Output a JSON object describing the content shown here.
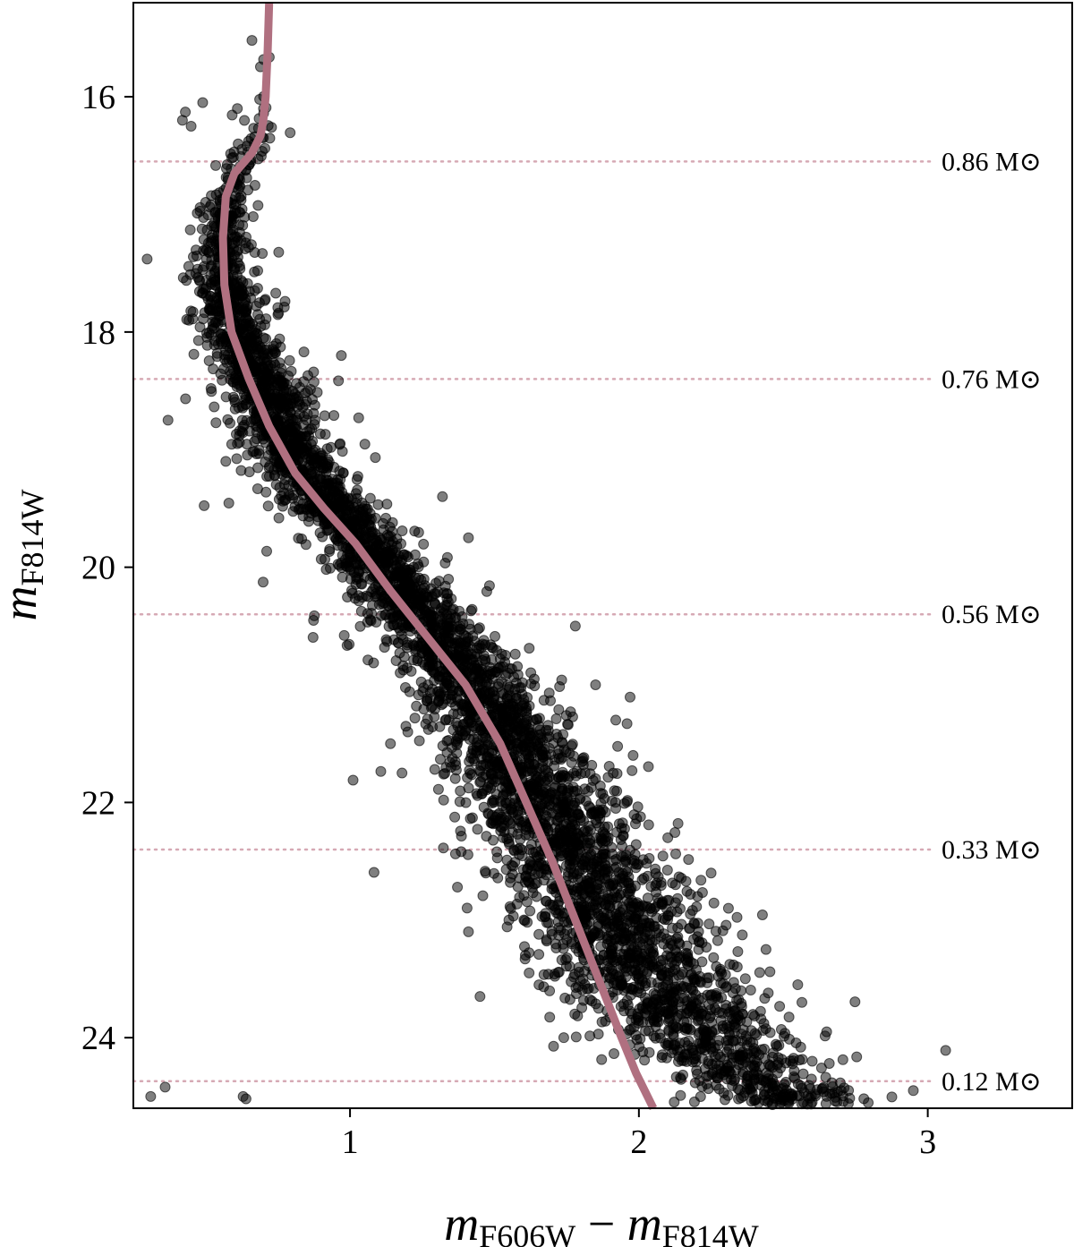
{
  "chart_data": {
    "type": "scatter",
    "xlabel": {
      "base": "m",
      "sub1": "F606W",
      "minus": "−",
      "base2": "m",
      "sub2": "F814W"
    },
    "ylabel": {
      "base": "m",
      "sub": "F814W"
    },
    "xlim": [
      0.25,
      3.5
    ],
    "ylim": [
      24.6,
      15.2
    ],
    "y_inverted": true,
    "xticks": [
      1,
      2,
      3
    ],
    "yticks": [
      16,
      18,
      20,
      22,
      24
    ],
    "grid": false,
    "colors": {
      "points": "#000000",
      "isochrone": "#b07080",
      "mass_lines": "#d6a9b4"
    },
    "isochrone": {
      "color": "#b07080",
      "x": [
        0.72,
        0.715,
        0.708,
        0.7,
        0.69,
        0.66,
        0.6,
        0.57,
        0.56,
        0.565,
        0.59,
        0.65,
        0.72,
        0.81,
        0.91,
        1.02,
        1.14,
        1.27,
        1.4,
        1.52,
        1.61,
        1.7,
        1.78,
        1.86,
        1.94,
        1.99,
        2.02,
        2.05
      ],
      "y": [
        15.2,
        15.6,
        16.0,
        16.2,
        16.33,
        16.48,
        16.65,
        16.85,
        17.2,
        17.6,
        18.0,
        18.4,
        18.8,
        19.2,
        19.5,
        19.8,
        20.2,
        20.6,
        21.0,
        21.5,
        22.0,
        22.5,
        23.0,
        23.5,
        24.0,
        24.3,
        24.45,
        24.6
      ]
    },
    "mass_lines": [
      {
        "y": 16.55,
        "label": "0.86 M⊙"
      },
      {
        "y": 18.4,
        "label": "0.76 M⊙"
      },
      {
        "y": 20.4,
        "label": "0.56 M⊙"
      },
      {
        "y": 22.4,
        "label": "0.33 M⊙"
      },
      {
        "y": 24.37,
        "label": "0.12 M⊙"
      }
    ],
    "stars_density_profile": [
      {
        "y": 15.5,
        "dx": 0.0,
        "w": 0.02,
        "n": 3
      },
      {
        "y": 16.0,
        "dx": 0.0,
        "w": 0.03,
        "n": 6
      },
      {
        "y": 16.4,
        "dx": 0.0,
        "w": 0.05,
        "n": 30
      },
      {
        "y": 16.8,
        "dx": 0.0,
        "w": 0.03,
        "n": 60
      },
      {
        "y": 17.2,
        "dx": 0.0,
        "w": 0.04,
        "n": 110
      },
      {
        "y": 17.6,
        "dx": 0.0,
        "w": 0.05,
        "n": 160
      },
      {
        "y": 18.0,
        "dx": 0.02,
        "w": 0.06,
        "n": 200
      },
      {
        "y": 18.4,
        "dx": 0.03,
        "w": 0.07,
        "n": 230
      },
      {
        "y": 18.8,
        "dx": 0.03,
        "w": 0.07,
        "n": 250
      },
      {
        "y": 19.2,
        "dx": 0.03,
        "w": 0.07,
        "n": 260
      },
      {
        "y": 19.6,
        "dx": 0.03,
        "w": 0.07,
        "n": 260
      },
      {
        "y": 20.0,
        "dx": 0.03,
        "w": 0.07,
        "n": 260
      },
      {
        "y": 20.4,
        "dx": 0.03,
        "w": 0.08,
        "n": 260
      },
      {
        "y": 20.8,
        "dx": 0.03,
        "w": 0.09,
        "n": 270
      },
      {
        "y": 21.2,
        "dx": 0.03,
        "w": 0.1,
        "n": 280
      },
      {
        "y": 21.6,
        "dx": 0.04,
        "w": 0.11,
        "n": 290
      },
      {
        "y": 22.0,
        "dx": 0.05,
        "w": 0.12,
        "n": 300
      },
      {
        "y": 22.4,
        "dx": 0.07,
        "w": 0.13,
        "n": 300
      },
      {
        "y": 22.8,
        "dx": 0.1,
        "w": 0.14,
        "n": 300
      },
      {
        "y": 23.2,
        "dx": 0.14,
        "w": 0.15,
        "n": 300
      },
      {
        "y": 23.6,
        "dx": 0.2,
        "w": 0.15,
        "n": 280
      },
      {
        "y": 24.0,
        "dx": 0.28,
        "w": 0.15,
        "n": 250
      },
      {
        "y": 24.4,
        "dx": 0.4,
        "w": 0.14,
        "n": 200
      },
      {
        "y": 24.6,
        "dx": 0.55,
        "w": 0.12,
        "n": 80
      }
    ],
    "outlier_stars": [
      {
        "x": 0.42,
        "y": 16.2
      },
      {
        "x": 0.45,
        "y": 16.25
      },
      {
        "x": 0.43,
        "y": 16.13
      },
      {
        "x": 0.49,
        "y": 16.05
      },
      {
        "x": 0.61,
        "y": 16.1
      },
      {
        "x": 0.37,
        "y": 18.75
      },
      {
        "x": 0.97,
        "y": 18.2
      },
      {
        "x": 1.03,
        "y": 18.73
      },
      {
        "x": 0.57,
        "y": 19.1
      },
      {
        "x": 0.61,
        "y": 18.95
      },
      {
        "x": 0.91,
        "y": 19.55
      },
      {
        "x": 0.98,
        "y": 20.58
      },
      {
        "x": 1.32,
        "y": 19.4
      },
      {
        "x": 1.41,
        "y": 19.75
      },
      {
        "x": 1.22,
        "y": 20.0
      },
      {
        "x": 1.27,
        "y": 21.0
      },
      {
        "x": 1.14,
        "y": 21.5
      },
      {
        "x": 1.2,
        "y": 21.4
      },
      {
        "x": 1.18,
        "y": 21.75
      },
      {
        "x": 1.35,
        "y": 21.7
      },
      {
        "x": 1.48,
        "y": 22.1
      },
      {
        "x": 1.53,
        "y": 22.3
      },
      {
        "x": 1.47,
        "y": 22.6
      },
      {
        "x": 1.58,
        "y": 22.4
      },
      {
        "x": 1.41,
        "y": 23.1
      },
      {
        "x": 1.45,
        "y": 23.65
      },
      {
        "x": 1.55,
        "y": 23.0
      },
      {
        "x": 1.62,
        "y": 23.45
      },
      {
        "x": 1.78,
        "y": 20.5
      },
      {
        "x": 1.85,
        "y": 21.0
      },
      {
        "x": 1.92,
        "y": 21.3
      },
      {
        "x": 1.98,
        "y": 21.6
      },
      {
        "x": 2.1,
        "y": 22.3
      },
      {
        "x": 2.25,
        "y": 22.6
      },
      {
        "x": 2.31,
        "y": 22.9
      },
      {
        "x": 2.44,
        "y": 23.25
      },
      {
        "x": 2.55,
        "y": 23.55
      },
      {
        "x": 2.65,
        "y": 23.95
      },
      {
        "x": 2.6,
        "y": 24.2
      },
      {
        "x": 2.7,
        "y": 24.45
      },
      {
        "x": 2.95,
        "y": 24.45
      },
      {
        "x": 0.31,
        "y": 24.5
      },
      {
        "x": 0.36,
        "y": 24.42
      },
      {
        "x": 0.37,
        "y": 24.6
      },
      {
        "x": 0.63,
        "y": 24.5
      },
      {
        "x": 0.64,
        "y": 24.52
      },
      {
        "x": 1.65,
        "y": 24.58
      },
      {
        "x": 1.34,
        "y": 20.75
      },
      {
        "x": 1.65,
        "y": 21.9
      },
      {
        "x": 1.92,
        "y": 22.05
      },
      {
        "x": 2.05,
        "y": 23.7
      },
      {
        "x": 2.12,
        "y": 24.1
      },
      {
        "x": 2.36,
        "y": 23.8
      },
      {
        "x": 2.48,
        "y": 24.3
      },
      {
        "x": 2.57,
        "y": 24.55
      },
      {
        "x": 1.74,
        "y": 24.0
      }
    ]
  }
}
